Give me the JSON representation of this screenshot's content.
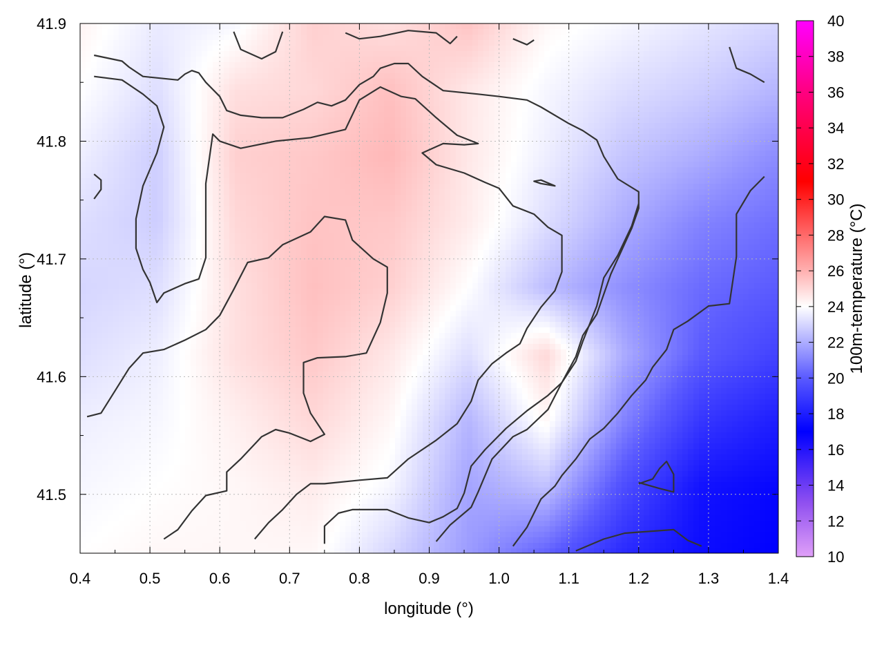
{
  "chart_data": {
    "type": "heatmap",
    "xlabel": "longitude (°)",
    "ylabel": "latitude (°)",
    "colorbar_label": "100m-temperature (°C)",
    "xlim": [
      0.4,
      1.4
    ],
    "ylim": [
      41.45,
      41.9
    ],
    "x_ticks": [
      "0.4",
      "0.5",
      "0.6",
      "0.7",
      "0.8",
      "0.9",
      "1.0",
      "1.1",
      "1.2",
      "1.3",
      "1.4"
    ],
    "y_ticks": [
      "41.5",
      "41.6",
      "41.7",
      "41.8",
      "41.9"
    ],
    "colorbar_range": [
      10,
      40
    ],
    "colorbar_ticks": [
      "10",
      "12",
      "14",
      "16",
      "18",
      "20",
      "22",
      "24",
      "26",
      "28",
      "30",
      "32",
      "34",
      "36",
      "38",
      "40"
    ],
    "colorbar_stops": [
      {
        "value": 10,
        "color": "#e0a0f8"
      },
      {
        "value": 13,
        "color": "#9050f0"
      },
      {
        "value": 17,
        "color": "#0000ff"
      },
      {
        "value": 20,
        "color": "#5a5aff"
      },
      {
        "value": 24,
        "color": "#ffffff"
      },
      {
        "value": 26,
        "color": "#ffb0b0"
      },
      {
        "value": 31,
        "color": "#ff0000"
      },
      {
        "value": 36,
        "color": "#ff0080"
      },
      {
        "value": 40,
        "color": "#ff00ff"
      }
    ],
    "grid": true,
    "temperature_field": {
      "nx": 10,
      "ny": 9,
      "x_range": [
        0.4,
        1.4
      ],
      "y_range": [
        41.45,
        41.9
      ],
      "rows_north_to_south": [
        [
          24.3,
          23.5,
          23.8,
          25.2,
          24.8,
          25.5,
          24.2,
          23.8,
          23.4,
          23.0
        ],
        [
          24.0,
          23.2,
          24.8,
          25.0,
          25.6,
          24.6,
          23.8,
          23.2,
          22.8,
          22.2
        ],
        [
          23.6,
          22.8,
          25.2,
          25.4,
          25.8,
          24.6,
          23.6,
          22.6,
          22.0,
          21.2
        ],
        [
          23.2,
          22.8,
          25.0,
          25.5,
          25.4,
          24.5,
          23.2,
          22.0,
          21.0,
          20.5
        ],
        [
          23.0,
          23.2,
          24.8,
          25.6,
          25.2,
          24.0,
          22.4,
          21.3,
          20.4,
          20.0
        ],
        [
          23.2,
          23.6,
          24.8,
          25.4,
          24.6,
          23.2,
          25.0,
          22.0,
          20.0,
          19.2
        ],
        [
          23.6,
          23.8,
          24.4,
          25.0,
          24.2,
          22.2,
          24.2,
          21.0,
          18.8,
          18.0
        ],
        [
          23.8,
          24.0,
          24.2,
          24.5,
          23.8,
          21.8,
          22.5,
          19.6,
          17.6,
          17.2
        ],
        [
          24.0,
          24.2,
          24.2,
          24.2,
          23.0,
          21.6,
          20.2,
          18.4,
          17.4,
          17.0
        ]
      ]
    },
    "contour_lines": [
      [
        [
          0.42,
          41.873
        ],
        [
          0.46,
          41.868
        ],
        [
          0.47,
          41.863
        ],
        [
          0.49,
          41.855
        ],
        [
          0.54,
          41.852
        ],
        [
          0.55,
          41.857
        ],
        [
          0.56,
          41.86
        ],
        [
          0.57,
          41.858
        ],
        [
          0.58,
          41.85
        ],
        [
          0.6,
          41.838
        ],
        [
          0.61,
          41.826
        ],
        [
          0.63,
          41.822
        ],
        [
          0.66,
          41.82
        ],
        [
          0.69,
          41.82
        ],
        [
          0.72,
          41.827
        ],
        [
          0.74,
          41.833
        ],
        [
          0.76,
          41.83
        ],
        [
          0.78,
          41.835
        ],
        [
          0.8,
          41.848
        ],
        [
          0.82,
          41.855
        ],
        [
          0.83,
          41.862
        ],
        [
          0.85,
          41.866
        ],
        [
          0.87,
          41.866
        ],
        [
          0.89,
          41.855
        ],
        [
          0.92,
          41.843
        ],
        [
          0.97,
          41.84
        ],
        [
          1.0,
          41.838
        ],
        [
          1.04,
          41.835
        ],
        [
          1.06,
          41.829
        ],
        [
          1.1,
          41.815
        ],
        [
          1.12,
          41.809
        ],
        [
          1.14,
          41.801
        ],
        [
          1.15,
          41.787
        ],
        [
          1.17,
          41.768
        ],
        [
          1.2,
          41.757
        ],
        [
          1.2,
          41.743
        ],
        [
          1.19,
          41.726
        ],
        [
          1.16,
          41.687
        ],
        [
          1.14,
          41.653
        ],
        [
          1.12,
          41.635
        ],
        [
          1.11,
          41.617
        ],
        [
          1.09,
          41.595
        ],
        [
          1.07,
          41.572
        ],
        [
          1.04,
          41.555
        ],
        [
          1.02,
          41.549
        ],
        [
          0.99,
          41.53
        ],
        [
          0.97,
          41.502
        ],
        [
          0.96,
          41.489
        ],
        [
          0.93,
          41.474
        ],
        [
          0.91,
          41.46
        ]
      ],
      [
        [
          0.42,
          41.855
        ],
        [
          0.46,
          41.852
        ],
        [
          0.49,
          41.84
        ],
        [
          0.51,
          41.83
        ],
        [
          0.52,
          41.812
        ],
        [
          0.51,
          41.79
        ],
        [
          0.49,
          41.762
        ],
        [
          0.48,
          41.734
        ],
        [
          0.48,
          41.709
        ],
        [
          0.49,
          41.691
        ],
        [
          0.5,
          41.68
        ],
        [
          0.51,
          41.663
        ],
        [
          0.52,
          41.671
        ],
        [
          0.55,
          41.679
        ],
        [
          0.57,
          41.683
        ],
        [
          0.58,
          41.701
        ],
        [
          0.58,
          41.734
        ],
        [
          0.58,
          41.764
        ],
        [
          0.59,
          41.806
        ],
        [
          0.6,
          41.8
        ],
        [
          0.63,
          41.794
        ],
        [
          0.68,
          41.8
        ],
        [
          0.73,
          41.803
        ],
        [
          0.78,
          41.81
        ],
        [
          0.8,
          41.835
        ],
        [
          0.83,
          41.846
        ],
        [
          0.86,
          41.838
        ],
        [
          0.88,
          41.836
        ],
        [
          0.91,
          41.82
        ],
        [
          0.94,
          41.805
        ],
        [
          0.97,
          41.798
        ],
        [
          0.95,
          41.797
        ],
        [
          0.92,
          41.798
        ],
        [
          0.89,
          41.79
        ],
        [
          0.91,
          41.78
        ],
        [
          0.95,
          41.773
        ],
        [
          0.98,
          41.765
        ],
        [
          1.0,
          41.76
        ],
        [
          1.02,
          41.745
        ],
        [
          1.05,
          41.738
        ],
        [
          1.07,
          41.727
        ],
        [
          1.09,
          41.72
        ],
        [
          1.09,
          41.708
        ],
        [
          1.09,
          41.689
        ],
        [
          1.08,
          41.673
        ],
        [
          1.06,
          41.659
        ],
        [
          1.04,
          41.641
        ],
        [
          1.03,
          41.628
        ],
        [
          1.01,
          41.62
        ],
        [
          0.99,
          41.611
        ],
        [
          0.97,
          41.597
        ],
        [
          0.96,
          41.579
        ],
        [
          0.94,
          41.56
        ],
        [
          0.91,
          41.546
        ],
        [
          0.87,
          41.53
        ],
        [
          0.84,
          41.514
        ],
        [
          0.8,
          41.512
        ],
        [
          0.75,
          41.509
        ],
        [
          0.73,
          41.509
        ],
        [
          0.71,
          41.5
        ],
        [
          0.69,
          41.487
        ],
        [
          0.67,
          41.476
        ],
        [
          0.65,
          41.462
        ]
      ],
      [
        [
          0.41,
          41.566
        ],
        [
          0.43,
          41.569
        ],
        [
          0.45,
          41.588
        ],
        [
          0.47,
          41.607
        ],
        [
          0.49,
          41.62
        ],
        [
          0.52,
          41.623
        ],
        [
          0.55,
          41.631
        ],
        [
          0.58,
          41.64
        ],
        [
          0.6,
          41.652
        ],
        [
          0.62,
          41.674
        ],
        [
          0.64,
          41.697
        ],
        [
          0.67,
          41.701
        ],
        [
          0.69,
          41.712
        ],
        [
          0.73,
          41.723
        ],
        [
          0.75,
          41.736
        ],
        [
          0.78,
          41.733
        ],
        [
          0.79,
          41.716
        ],
        [
          0.82,
          41.7
        ],
        [
          0.84,
          41.693
        ],
        [
          0.84,
          41.671
        ],
        [
          0.83,
          41.646
        ],
        [
          0.81,
          41.62
        ],
        [
          0.78,
          41.617
        ],
        [
          0.74,
          41.616
        ],
        [
          0.72,
          41.612
        ],
        [
          0.72,
          41.605
        ],
        [
          0.72,
          41.586
        ],
        [
          0.73,
          41.569
        ],
        [
          0.75,
          41.551
        ],
        [
          0.73,
          41.545
        ],
        [
          0.7,
          41.552
        ],
        [
          0.68,
          41.555
        ],
        [
          0.66,
          41.549
        ],
        [
          0.63,
          41.53
        ],
        [
          0.61,
          41.519
        ],
        [
          0.61,
          41.503
        ],
        [
          0.58,
          41.499
        ],
        [
          0.56,
          41.486
        ],
        [
          0.54,
          41.47
        ],
        [
          0.52,
          41.462
        ]
      ],
      [
        [
          0.75,
          41.458
        ],
        [
          0.75,
          41.473
        ],
        [
          0.77,
          41.484
        ],
        [
          0.79,
          41.487
        ],
        [
          0.84,
          41.487
        ],
        [
          0.87,
          41.48
        ],
        [
          0.9,
          41.476
        ],
        [
          0.92,
          41.481
        ],
        [
          0.94,
          41.488
        ],
        [
          0.95,
          41.501
        ],
        [
          0.96,
          41.524
        ],
        [
          0.98,
          41.538
        ],
        [
          1.01,
          41.556
        ],
        [
          1.04,
          41.571
        ],
        [
          1.07,
          41.584
        ],
        [
          1.09,
          41.595
        ],
        [
          1.11,
          41.613
        ],
        [
          1.12,
          41.63
        ],
        [
          1.14,
          41.66
        ],
        [
          1.15,
          41.684
        ],
        [
          1.17,
          41.703
        ],
        [
          1.19,
          41.728
        ],
        [
          1.2,
          41.747
        ]
      ],
      [
        [
          1.02,
          41.456
        ],
        [
          1.04,
          41.472
        ],
        [
          1.06,
          41.496
        ],
        [
          1.08,
          41.507
        ],
        [
          1.09,
          41.516
        ],
        [
          1.11,
          41.53
        ],
        [
          1.13,
          41.547
        ],
        [
          1.15,
          41.556
        ],
        [
          1.17,
          41.569
        ],
        [
          1.19,
          41.584
        ],
        [
          1.21,
          41.597
        ],
        [
          1.22,
          41.608
        ],
        [
          1.24,
          41.623
        ],
        [
          1.25,
          41.64
        ],
        [
          1.27,
          41.647
        ],
        [
          1.3,
          41.66
        ],
        [
          1.33,
          41.662
        ],
        [
          1.34,
          41.702
        ],
        [
          1.34,
          41.738
        ],
        [
          1.36,
          41.758
        ],
        [
          1.38,
          41.77
        ]
      ],
      [
        [
          0.42,
          41.772
        ],
        [
          0.43,
          41.767
        ],
        [
          0.43,
          41.759
        ],
        [
          0.42,
          41.751
        ]
      ],
      [
        [
          1.06,
          41.764
        ],
        [
          1.08,
          41.762
        ],
        [
          1.06,
          41.767
        ],
        [
          1.05,
          41.766
        ],
        [
          1.06,
          41.764
        ]
      ],
      [
        [
          1.2,
          41.51
        ],
        [
          1.23,
          41.505
        ],
        [
          1.25,
          41.502
        ],
        [
          1.25,
          41.517
        ],
        [
          1.24,
          41.528
        ],
        [
          1.23,
          41.522
        ],
        [
          1.22,
          41.513
        ],
        [
          1.2,
          41.509
        ]
      ],
      [
        [
          1.11,
          41.452
        ],
        [
          1.15,
          41.462
        ],
        [
          1.18,
          41.467
        ],
        [
          1.25,
          41.47
        ],
        [
          1.27,
          41.461
        ],
        [
          1.29,
          41.456
        ]
      ],
      [
        [
          1.33,
          41.88
        ],
        [
          1.34,
          41.862
        ],
        [
          1.36,
          41.857
        ],
        [
          1.38,
          41.85
        ]
      ],
      [
        [
          0.62,
          41.893
        ],
        [
          0.63,
          41.878
        ],
        [
          0.66,
          41.87
        ],
        [
          0.68,
          41.876
        ],
        [
          0.69,
          41.893
        ]
      ],
      [
        [
          0.78,
          41.892
        ],
        [
          0.8,
          41.887
        ],
        [
          0.83,
          41.889
        ],
        [
          0.87,
          41.894
        ],
        [
          0.91,
          41.892
        ],
        [
          0.93,
          41.883
        ],
        [
          0.94,
          41.889
        ]
      ],
      [
        [
          1.02,
          41.887
        ],
        [
          1.04,
          41.882
        ],
        [
          1.05,
          41.886
        ]
      ]
    ]
  }
}
